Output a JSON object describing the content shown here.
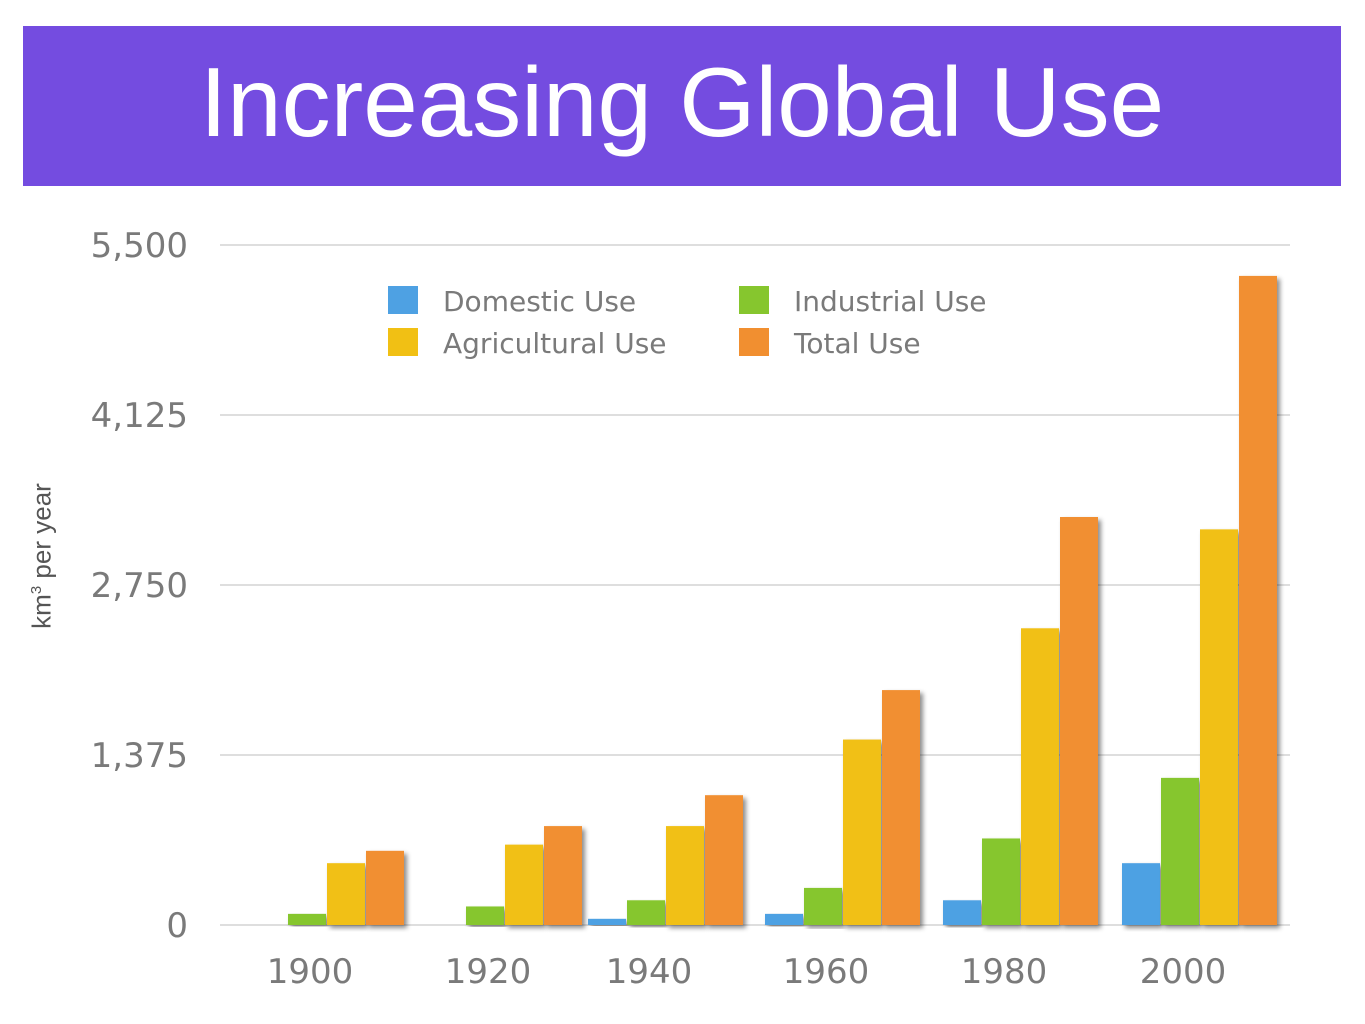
{
  "title": "Increasing Global Use",
  "ylabel_main": "km",
  "ylabel_sup": "3",
  "ylabel_rest": " per year",
  "chart_data": {
    "type": "bar",
    "title": "",
    "xlabel": "",
    "ylabel": "km3 per year",
    "categories": [
      "1900",
      "1920",
      "1940",
      "1960",
      "1980",
      "2000"
    ],
    "ylim": [
      0,
      5500
    ],
    "yticks": [
      "0",
      "1,375",
      "2,750",
      "4,125",
      "5,500"
    ],
    "ytick_values": [
      0,
      1375,
      2750,
      4125,
      5500
    ],
    "grid": true,
    "legend_position": "top-left",
    "series": [
      {
        "name": "Domestic Use",
        "color": "#4ea1e3",
        "values": [
          0,
          0,
          50,
          90,
          200,
          500
        ]
      },
      {
        "name": "Industrial Use",
        "color": "#86c62e",
        "values": [
          90,
          150,
          200,
          300,
          700,
          1190
        ]
      },
      {
        "name": "Agricultural Use",
        "color": "#f1c014",
        "values": [
          500,
          650,
          800,
          1500,
          2400,
          3200
        ]
      },
      {
        "name": "Total Use",
        "color": "#f18f30",
        "values": [
          600,
          800,
          1050,
          1900,
          3300,
          5250
        ]
      }
    ],
    "legend_order": [
      0,
      1,
      2,
      3
    ]
  }
}
